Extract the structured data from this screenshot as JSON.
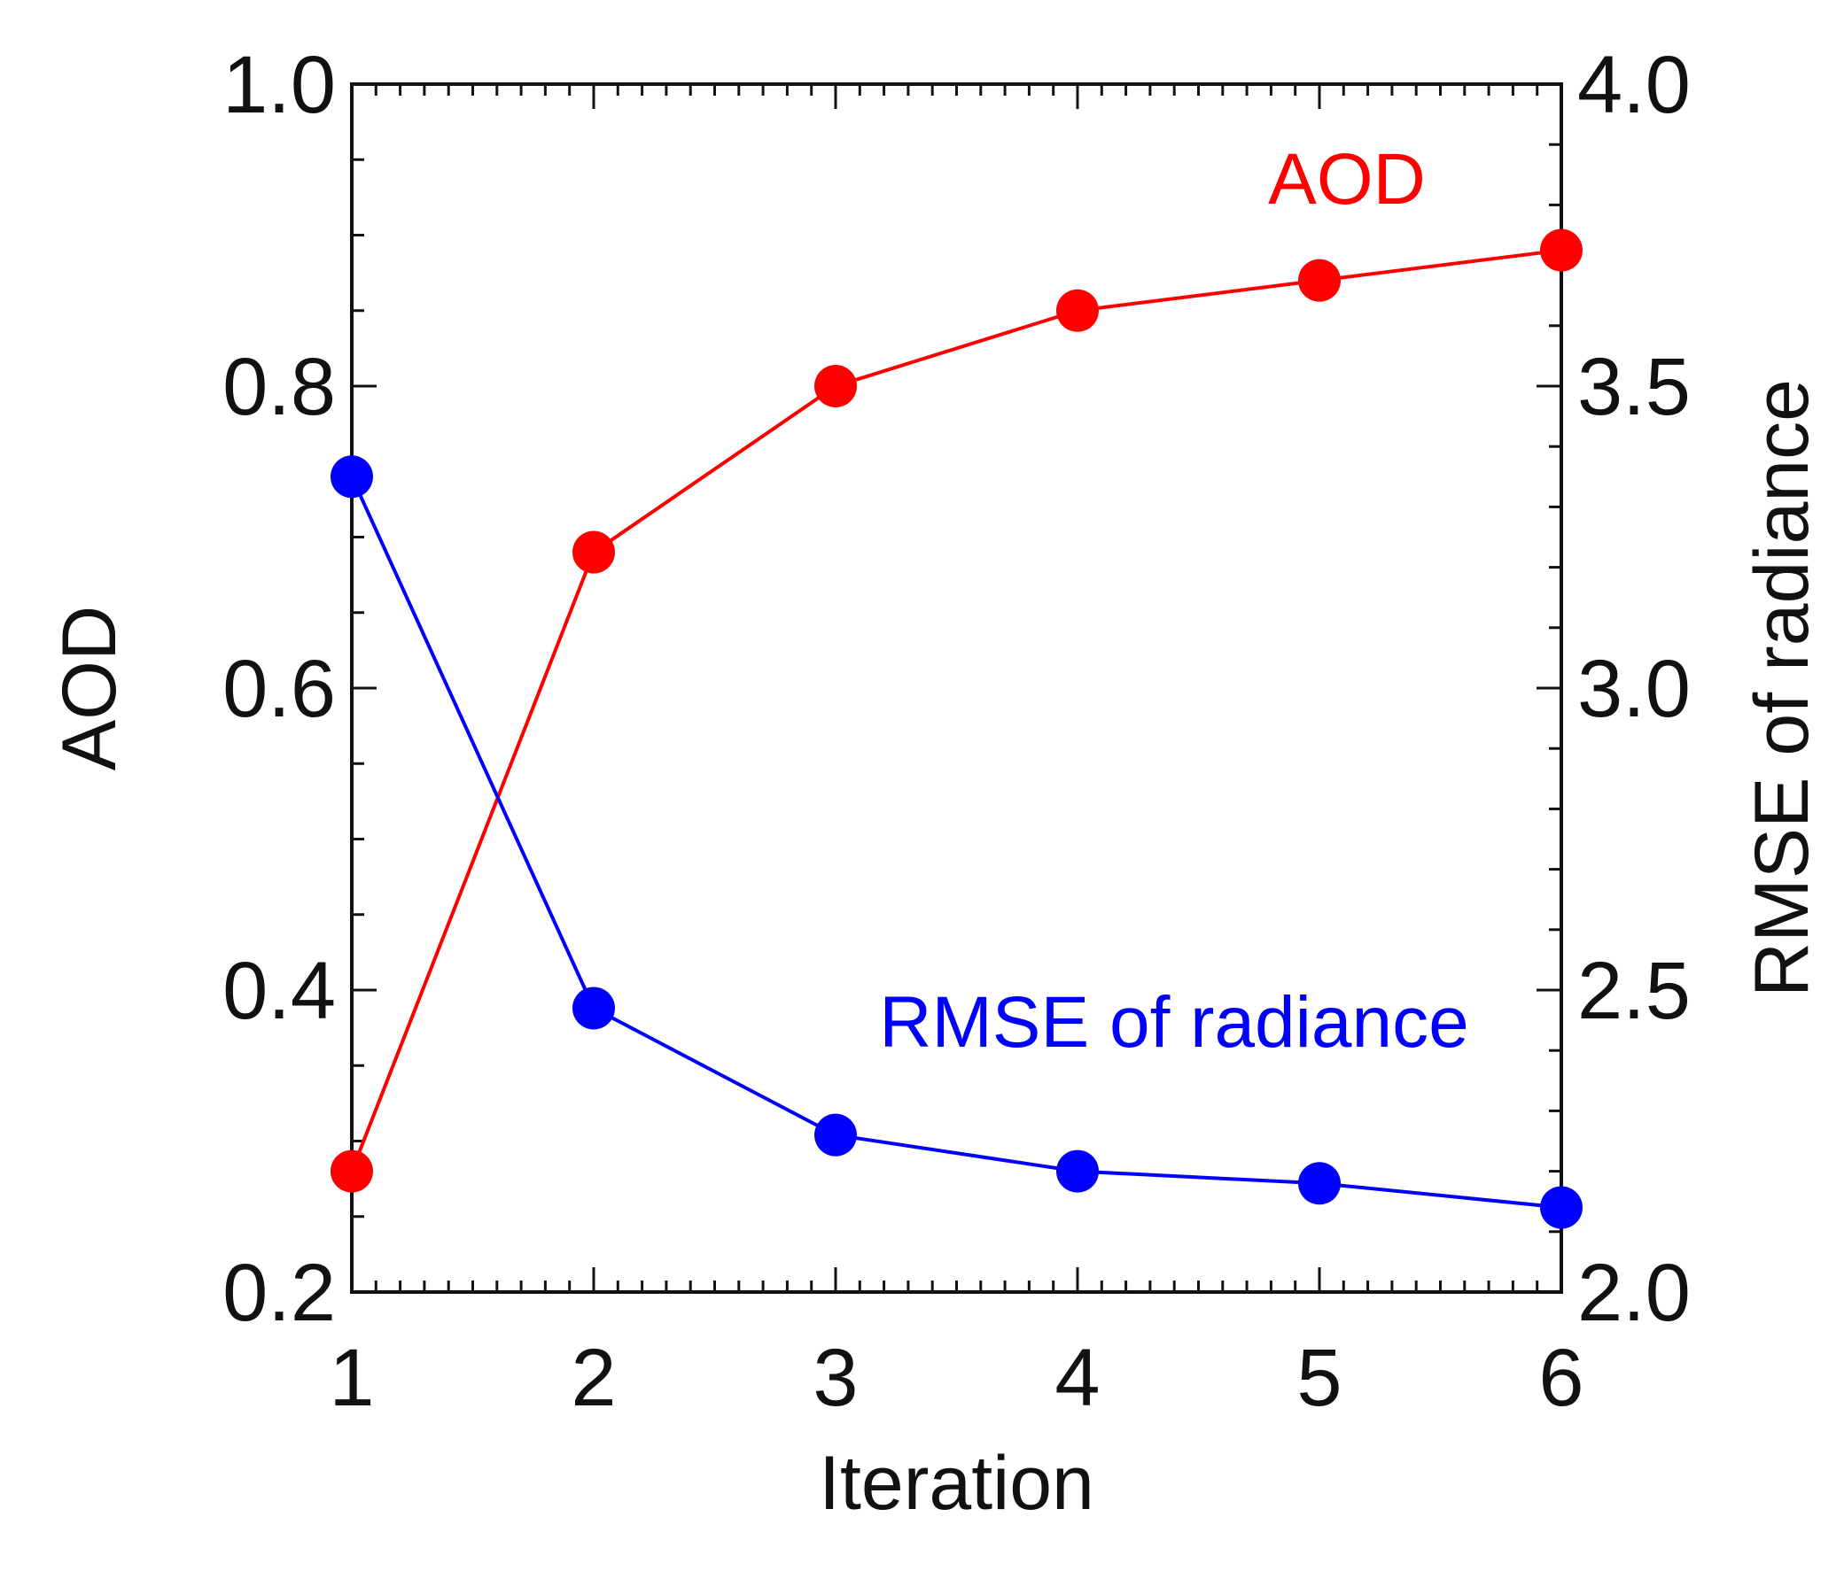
{
  "chart_data": {
    "type": "line",
    "title": "",
    "xlabel": "Iteration",
    "ylabel": "AOD",
    "y2label": "RMSE of radiance",
    "x": [
      1,
      2,
      3,
      4,
      5,
      6
    ],
    "xlim": [
      1,
      6
    ],
    "ylim": [
      0.2,
      1.0
    ],
    "y2lim": [
      2.0,
      4.0
    ],
    "x_ticks": [
      "1",
      "2",
      "3",
      "4",
      "5",
      "6"
    ],
    "y_ticks": [
      "0.2",
      "0.4",
      "0.6",
      "0.8",
      "1.0"
    ],
    "y2_ticks": [
      "2.0",
      "2.5",
      "3.0",
      "3.5",
      "4.0"
    ],
    "series": [
      {
        "name": "AOD",
        "axis": "left",
        "color": "#ff0000",
        "values": [
          0.28,
          0.69,
          0.8,
          0.85,
          0.87,
          0.89
        ]
      },
      {
        "name": "RMSE of radiance",
        "axis": "right",
        "color": "#0000ff",
        "values": [
          3.35,
          2.47,
          2.26,
          2.2,
          2.18,
          2.14
        ]
      }
    ],
    "grid": false
  }
}
